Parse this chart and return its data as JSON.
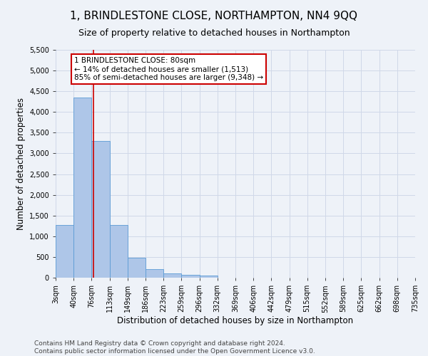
{
  "title": "1, BRINDLESTONE CLOSE, NORTHAMPTON, NN4 9QQ",
  "subtitle": "Size of property relative to detached houses in Northampton",
  "xlabel": "Distribution of detached houses by size in Northampton",
  "ylabel": "Number of detached properties",
  "footnote1": "Contains HM Land Registry data © Crown copyright and database right 2024.",
  "footnote2": "Contains public sector information licensed under the Open Government Licence v3.0.",
  "bar_edges": [
    3,
    40,
    76,
    113,
    149,
    186,
    223,
    259,
    296,
    332,
    369,
    406,
    442,
    479,
    515,
    552,
    589,
    625,
    662,
    698,
    735
  ],
  "bar_heights": [
    1270,
    4350,
    3300,
    1270,
    480,
    200,
    100,
    70,
    50,
    0,
    0,
    0,
    0,
    0,
    0,
    0,
    0,
    0,
    0,
    0
  ],
  "bar_color": "#aec6e8",
  "bar_edgecolor": "#5b9bd5",
  "grid_color": "#d0d8e8",
  "vline_x": 80,
  "vline_color": "#cc0000",
  "annotation_text": "1 BRINDLESTONE CLOSE: 80sqm\n← 14% of detached houses are smaller (1,513)\n85% of semi-detached houses are larger (9,348) →",
  "annotation_box_edgecolor": "#cc0000",
  "annotation_box_facecolor": "#ffffff",
  "ylim": [
    0,
    5500
  ],
  "yticks": [
    0,
    500,
    1000,
    1500,
    2000,
    2500,
    3000,
    3500,
    4000,
    4500,
    5000,
    5500
  ],
  "tick_labels": [
    "3sqm",
    "40sqm",
    "76sqm",
    "113sqm",
    "149sqm",
    "186sqm",
    "223sqm",
    "259sqm",
    "296sqm",
    "332sqm",
    "369sqm",
    "406sqm",
    "442sqm",
    "479sqm",
    "515sqm",
    "552sqm",
    "589sqm",
    "625sqm",
    "662sqm",
    "698sqm",
    "735sqm"
  ],
  "background_color": "#eef2f8",
  "title_fontsize": 11,
  "subtitle_fontsize": 9,
  "label_fontsize": 8.5,
  "tick_fontsize": 7,
  "footnote_fontsize": 6.5,
  "annotation_fontsize": 7.5
}
